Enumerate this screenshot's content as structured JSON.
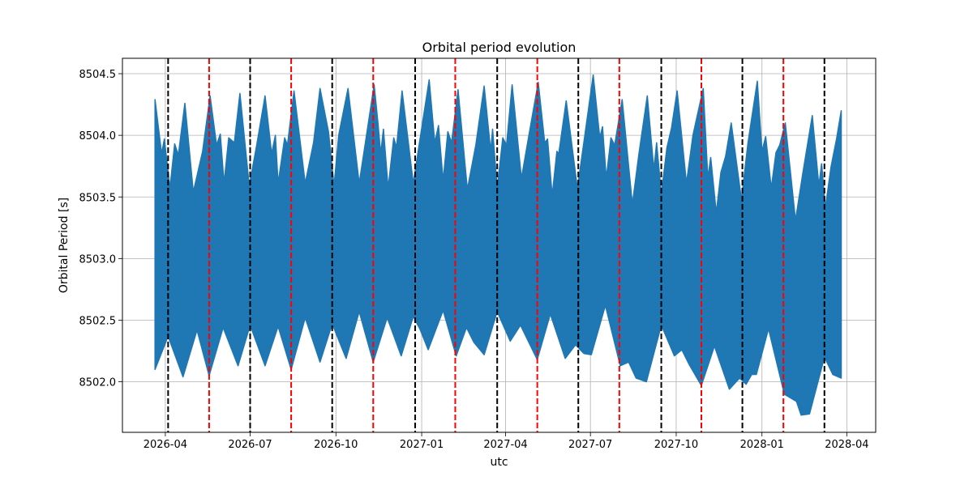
{
  "chart_data": {
    "type": "area",
    "title": "Orbital period evolution",
    "xlabel": "utc",
    "ylabel": "Orbital Period [s]",
    "xlim": [
      "2026-02-14",
      "2028-05-02"
    ],
    "ylim": [
      8501.59,
      8504.625
    ],
    "grid": true,
    "x_ticks": [
      "2026-04",
      "2026-07",
      "2026-10",
      "2027-01",
      "2027-04",
      "2027-07",
      "2027-10",
      "2028-01",
      "2028-04"
    ],
    "y_ticks": [
      8502.0,
      8502.5,
      8503.0,
      8503.5,
      8504.0,
      8504.5
    ],
    "y_tick_labels": [
      "8502.0",
      "8502.5",
      "8503.0",
      "8503.5",
      "8504.0",
      "8504.5"
    ],
    "series_color": "#1f77b4",
    "upper_envelope": [
      [
        "2026-03-21",
        8504.29
      ],
      [
        "2026-03-28",
        8503.85
      ],
      [
        "2026-03-31",
        8503.97
      ],
      [
        "2026-04-06",
        8503.57
      ],
      [
        "2026-04-11",
        8503.93
      ],
      [
        "2026-04-15",
        8503.84
      ],
      [
        "2026-04-22",
        8504.26
      ],
      [
        "2026-05-01",
        8503.54
      ],
      [
        "2026-05-11",
        8503.87
      ],
      [
        "2026-05-19",
        8504.32
      ],
      [
        "2026-05-26",
        8503.92
      ],
      [
        "2026-05-30",
        8504.01
      ],
      [
        "2026-06-03",
        8503.61
      ],
      [
        "2026-06-08",
        8503.98
      ],
      [
        "2026-06-14",
        8503.94
      ],
      [
        "2026-06-20",
        8504.34
      ],
      [
        "2026-06-30",
        8503.59
      ],
      [
        "2026-07-08",
        8503.92
      ],
      [
        "2026-07-17",
        8504.32
      ],
      [
        "2026-07-24",
        8503.85
      ],
      [
        "2026-07-28",
        8504.0
      ],
      [
        "2026-07-31",
        8503.61
      ],
      [
        "2026-08-07",
        8503.98
      ],
      [
        "2026-08-10",
        8503.92
      ],
      [
        "2026-08-17",
        8504.36
      ],
      [
        "2026-08-29",
        8503.61
      ],
      [
        "2026-09-07",
        8503.94
      ],
      [
        "2026-09-14",
        8504.38
      ],
      [
        "2026-09-23",
        8504.03
      ],
      [
        "2026-09-29",
        8503.59
      ],
      [
        "2026-10-04",
        8504.0
      ],
      [
        "2026-10-14",
        8504.38
      ],
      [
        "2026-10-26",
        8503.61
      ],
      [
        "2026-11-02",
        8503.96
      ],
      [
        "2026-11-11",
        8504.41
      ],
      [
        "2026-11-15",
        8504.11
      ],
      [
        "2026-11-18",
        8503.85
      ],
      [
        "2026-11-21",
        8504.05
      ],
      [
        "2026-11-26",
        8503.57
      ],
      [
        "2026-12-02",
        8503.98
      ],
      [
        "2026-12-05",
        8503.9
      ],
      [
        "2026-12-11",
        8504.36
      ],
      [
        "2026-12-23",
        8503.61
      ],
      [
        "2026-12-30",
        8503.96
      ],
      [
        "2027-01-09",
        8504.45
      ],
      [
        "2027-01-15",
        8503.94
      ],
      [
        "2027-01-19",
        8504.08
      ],
      [
        "2027-01-24",
        8503.63
      ],
      [
        "2027-01-29",
        8504.03
      ],
      [
        "2027-02-02",
        8503.94
      ],
      [
        "2027-02-09",
        8504.37
      ],
      [
        "2027-02-19",
        8503.56
      ],
      [
        "2027-02-28",
        8503.92
      ],
      [
        "2027-03-09",
        8504.4
      ],
      [
        "2027-03-16",
        8503.87
      ],
      [
        "2027-03-18",
        8504.05
      ],
      [
        "2027-03-23",
        8503.57
      ],
      [
        "2027-03-29",
        8503.98
      ],
      [
        "2027-04-02",
        8503.92
      ],
      [
        "2027-04-08",
        8504.41
      ],
      [
        "2027-04-18",
        8503.65
      ],
      [
        "2027-04-26",
        8504.0
      ],
      [
        "2027-05-06",
        8504.43
      ],
      [
        "2027-05-13",
        8503.94
      ],
      [
        "2027-05-16",
        8503.97
      ],
      [
        "2027-05-21",
        8503.51
      ],
      [
        "2027-05-26",
        8503.87
      ],
      [
        "2027-05-28",
        8503.85
      ],
      [
        "2027-06-05",
        8504.28
      ],
      [
        "2027-06-17",
        8503.57
      ],
      [
        "2027-06-25",
        8504.0
      ],
      [
        "2027-07-04",
        8504.49
      ],
      [
        "2027-07-11",
        8503.98
      ],
      [
        "2027-07-14",
        8504.07
      ],
      [
        "2027-07-18",
        8503.65
      ],
      [
        "2027-07-23",
        8503.98
      ],
      [
        "2027-07-27",
        8503.92
      ],
      [
        "2027-08-04",
        8504.29
      ],
      [
        "2027-08-15",
        8503.44
      ],
      [
        "2027-08-22",
        8503.85
      ],
      [
        "2027-08-31",
        8504.32
      ],
      [
        "2027-09-07",
        8503.72
      ],
      [
        "2027-09-10",
        8503.94
      ],
      [
        "2027-09-15",
        8503.52
      ],
      [
        "2027-09-21",
        8503.9
      ],
      [
        "2027-09-26",
        8504.06
      ],
      [
        "2027-10-02",
        8504.36
      ],
      [
        "2027-10-12",
        8503.61
      ],
      [
        "2027-10-19",
        8504.0
      ],
      [
        "2027-10-30",
        8504.38
      ],
      [
        "2027-11-04",
        8503.65
      ],
      [
        "2027-11-07",
        8503.82
      ],
      [
        "2027-11-13",
        8503.37
      ],
      [
        "2027-11-18",
        8503.7
      ],
      [
        "2027-11-23",
        8503.83
      ],
      [
        "2027-11-29",
        8504.1
      ],
      [
        "2027-12-10",
        8503.48
      ],
      [
        "2027-12-17",
        8503.94
      ],
      [
        "2027-12-27",
        8504.44
      ],
      [
        "2028-01-01",
        8503.87
      ],
      [
        "2028-01-05",
        8503.99
      ],
      [
        "2028-01-11",
        8503.57
      ],
      [
        "2028-01-16",
        8503.86
      ],
      [
        "2028-01-20",
        8503.92
      ],
      [
        "2028-01-26",
        8504.1
      ],
      [
        "2028-02-06",
        8503.31
      ],
      [
        "2028-02-14",
        8503.7
      ],
      [
        "2028-02-24",
        8504.16
      ],
      [
        "2028-03-02",
        8503.59
      ],
      [
        "2028-03-05",
        8503.77
      ],
      [
        "2028-03-09",
        8503.41
      ],
      [
        "2028-03-15",
        8503.74
      ],
      [
        "2028-03-21",
        8503.97
      ],
      [
        "2028-03-26",
        8504.2
      ]
    ],
    "lower_envelope": [
      [
        "2026-03-21",
        8502.1
      ],
      [
        "2026-04-04",
        8502.37
      ],
      [
        "2026-04-20",
        8502.04
      ],
      [
        "2026-05-05",
        8502.42
      ],
      [
        "2026-05-18",
        8502.05
      ],
      [
        "2026-06-02",
        8502.44
      ],
      [
        "2026-06-18",
        8502.13
      ],
      [
        "2026-07-01",
        8502.46
      ],
      [
        "2026-07-17",
        8502.13
      ],
      [
        "2026-07-31",
        8502.45
      ],
      [
        "2026-08-14",
        8502.1
      ],
      [
        "2026-08-29",
        8502.52
      ],
      [
        "2026-09-14",
        8502.16
      ],
      [
        "2026-09-27",
        8502.47
      ],
      [
        "2026-10-12",
        8502.19
      ],
      [
        "2026-10-26",
        8502.57
      ],
      [
        "2026-11-10",
        8502.16
      ],
      [
        "2026-11-25",
        8502.52
      ],
      [
        "2026-12-10",
        8502.21
      ],
      [
        "2026-12-23",
        8502.53
      ],
      [
        "2026-12-30",
        8502.43
      ],
      [
        "2027-01-08",
        8502.26
      ],
      [
        "2027-01-24",
        8502.58
      ],
      [
        "2027-02-07",
        8502.21
      ],
      [
        "2027-02-18",
        8502.44
      ],
      [
        "2027-02-26",
        8502.32
      ],
      [
        "2027-03-09",
        8502.22
      ],
      [
        "2027-03-23",
        8502.57
      ],
      [
        "2027-04-06",
        8502.33
      ],
      [
        "2027-04-17",
        8502.46
      ],
      [
        "2027-04-24",
        8502.35
      ],
      [
        "2027-05-05",
        8502.18
      ],
      [
        "2027-05-19",
        8502.55
      ],
      [
        "2027-06-04",
        8502.19
      ],
      [
        "2027-06-15",
        8502.3
      ],
      [
        "2027-06-24",
        8502.23
      ],
      [
        "2027-07-02",
        8502.22
      ],
      [
        "2027-07-17",
        8502.62
      ],
      [
        "2027-08-02",
        8502.13
      ],
      [
        "2027-08-11",
        8502.16
      ],
      [
        "2027-08-19",
        8502.03
      ],
      [
        "2027-08-30",
        8502.0
      ],
      [
        "2027-09-15",
        8502.46
      ],
      [
        "2027-09-29",
        8502.21
      ],
      [
        "2027-10-07",
        8502.26
      ],
      [
        "2027-10-15",
        8502.14
      ],
      [
        "2027-10-28",
        8501.97
      ],
      [
        "2027-11-11",
        8502.29
      ],
      [
        "2027-11-27",
        8501.94
      ],
      [
        "2027-12-08",
        8502.03
      ],
      [
        "2027-12-15",
        8501.98
      ],
      [
        "2027-12-21",
        8502.06
      ],
      [
        "2027-12-26",
        8502.06
      ],
      [
        "2028-01-08",
        8502.43
      ],
      [
        "2028-01-25",
        8501.9
      ],
      [
        "2028-02-07",
        8501.84
      ],
      [
        "2028-02-12",
        8501.73
      ],
      [
        "2028-02-21",
        8501.74
      ],
      [
        "2028-03-08",
        8502.2
      ],
      [
        "2028-03-17",
        8502.06
      ],
      [
        "2028-03-26",
        8502.03
      ]
    ],
    "vlines": {
      "black": {
        "color": "#000000",
        "style": "dashed",
        "dates": [
          "2026-04-04",
          "2026-07-01",
          "2026-09-27",
          "2026-12-25",
          "2027-03-23",
          "2027-06-18",
          "2027-09-15",
          "2027-12-11",
          "2028-03-08"
        ]
      },
      "red": {
        "color": "#ff0000",
        "style": "dashed",
        "dates": [
          "2026-05-18",
          "2026-08-14",
          "2026-11-10",
          "2027-02-06",
          "2027-05-05",
          "2027-08-01",
          "2027-10-28",
          "2028-01-24"
        ]
      }
    }
  }
}
